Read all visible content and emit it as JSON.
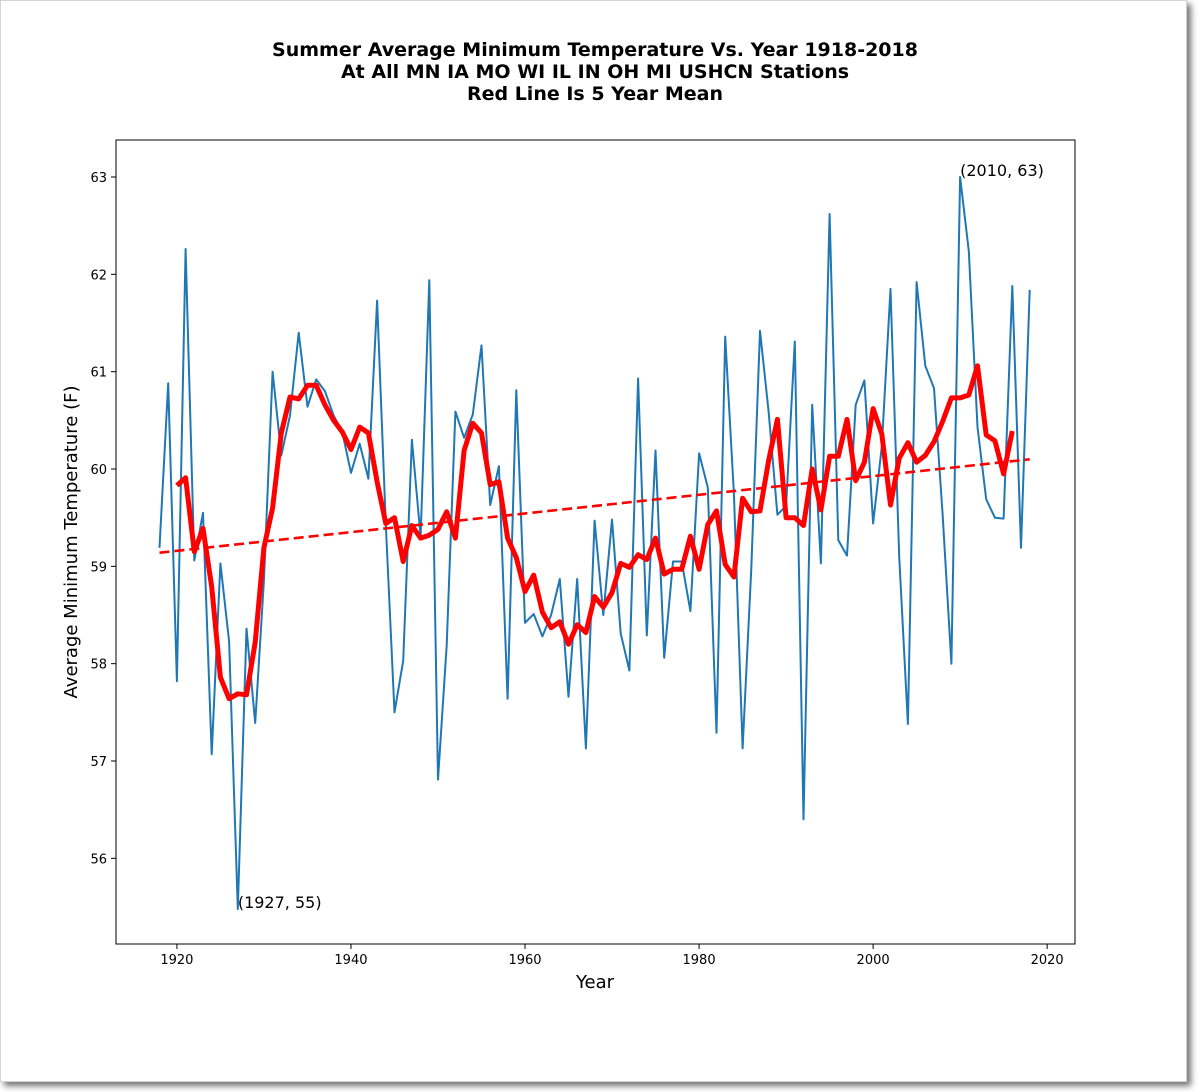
{
  "chart_data": {
    "type": "line",
    "title_lines": [
      "Summer Average Minimum Temperature Vs. Year 1918-2018",
      "At All MN IA MO WI IL IN OH MI USHCN Stations",
      "Red Line Is 5 Year Mean"
    ],
    "xlabel": "Year",
    "ylabel": "Average Minimum Temperature (F)",
    "xlim": [
      1913,
      2023.2
    ],
    "ylim": [
      55.12,
      63.38
    ],
    "xticks": [
      1920,
      1940,
      1960,
      1980,
      2000,
      2020
    ],
    "yticks": [
      56,
      57,
      58,
      59,
      60,
      61,
      62,
      63
    ],
    "grid": false,
    "colors": {
      "annual": "#1f77b4",
      "mean": "#ff0000",
      "trend": "#ff0000"
    },
    "series": [
      {
        "style": "line",
        "x": [
          1918,
          1919,
          1920,
          1921,
          1922,
          1923,
          1924,
          1925,
          1926,
          1927,
          1928,
          1929,
          1930,
          1931,
          1932,
          1933,
          1934,
          1935,
          1936,
          1937,
          1938,
          1939,
          1940,
          1941,
          1942,
          1943,
          1944,
          1945,
          1946,
          1947,
          1948,
          1949,
          1950,
          1951,
          1952,
          1953,
          1954,
          1955,
          1956,
          1957,
          1958,
          1959,
          1960,
          1961,
          1962,
          1963,
          1964,
          1965,
          1966,
          1967,
          1968,
          1969,
          1970,
          1971,
          1972,
          1973,
          1974,
          1975,
          1976,
          1977,
          1978,
          1979,
          1980,
          1981,
          1982,
          1983,
          1984,
          1985,
          1986,
          1987,
          1988,
          1989,
          1990,
          1991,
          1992,
          1993,
          1994,
          1995,
          1996,
          1997,
          1998,
          1999,
          2000,
          2001,
          2002,
          2003,
          2004,
          2005,
          2006,
          2007,
          2008,
          2009,
          2010,
          2011,
          2012,
          2013,
          2014,
          2015,
          2016,
          2017,
          2018
        ],
        "values": [
          59.19,
          60.88,
          57.82,
          62.26,
          59.06,
          59.55,
          57.07,
          59.03,
          58.23,
          55.48,
          58.36,
          57.39,
          58.85,
          61.0,
          60.14,
          60.55,
          61.4,
          60.64,
          60.92,
          60.8,
          60.55,
          60.38,
          59.96,
          60.26,
          59.9,
          61.73,
          59.43,
          57.5,
          58.03,
          60.3,
          59.3,
          61.94,
          56.81,
          58.19,
          60.59,
          60.32,
          60.56,
          61.27,
          59.63,
          60.03,
          57.64,
          60.81,
          58.42,
          58.51,
          58.28,
          58.5,
          58.87,
          57.66,
          58.87,
          57.13,
          59.47,
          58.5,
          59.48,
          58.31,
          57.93,
          60.93,
          58.29,
          60.19,
          58.06,
          59.05,
          59.05,
          58.54,
          60.16,
          59.81,
          57.29,
          61.36,
          59.75,
          57.13,
          58.98,
          61.42,
          60.58,
          59.53,
          59.62,
          61.31,
          56.4,
          60.66,
          59.03,
          62.62,
          59.27,
          59.11,
          60.66,
          60.91,
          59.44,
          60.23,
          61.85,
          59.1,
          57.38,
          61.92,
          61.06,
          60.83,
          59.52,
          58.0,
          63.0,
          62.24,
          60.43,
          59.69,
          59.5,
          59.49,
          61.88,
          59.19,
          61.84
        ]
      },
      {
        "style": "mean",
        "x": [
          1918,
          1919,
          1920,
          1921,
          1922,
          1923,
          1924,
          1925,
          1926,
          1927,
          1928,
          1929,
          1930,
          1931,
          1932,
          1933,
          1934,
          1935,
          1936,
          1937,
          1938,
          1939,
          1940,
          1941,
          1942,
          1943,
          1944,
          1945,
          1946,
          1947,
          1948,
          1949,
          1950,
          1951,
          1952,
          1953,
          1954,
          1955,
          1956,
          1957,
          1958,
          1959,
          1960,
          1961,
          1962,
          1963,
          1964,
          1965,
          1966,
          1967,
          1968,
          1969,
          1970,
          1971,
          1972,
          1973,
          1974,
          1975,
          1976,
          1977,
          1978,
          1979,
          1980,
          1981,
          1982,
          1983,
          1984,
          1985,
          1986,
          1987,
          1988,
          1989,
          1990,
          1991,
          1992,
          1993,
          1994,
          1995,
          1996,
          1997,
          1998,
          1999,
          2000,
          2001,
          2002,
          2003,
          2004,
          2005,
          2006,
          2007,
          2008,
          2009,
          2010,
          2011,
          2012,
          2013,
          2014,
          2015,
          2016
        ],
        "values": [
          null,
          null,
          59.83,
          59.91,
          59.15,
          59.39,
          58.79,
          57.86,
          57.64,
          57.69,
          57.68,
          58.22,
          59.19,
          59.6,
          60.37,
          60.74,
          60.72,
          60.86,
          60.86,
          60.66,
          60.5,
          60.38,
          60.2,
          60.43,
          60.37,
          59.87,
          59.44,
          59.5,
          59.05,
          59.42,
          59.29,
          59.32,
          59.38,
          59.56,
          59.29,
          60.19,
          60.47,
          60.37,
          59.84,
          59.87,
          59.29,
          59.09,
          58.74,
          58.91,
          58.53,
          58.37,
          58.43,
          58.2,
          58.4,
          58.32,
          58.69,
          58.58,
          58.73,
          59.03,
          58.99,
          59.12,
          59.07,
          59.29,
          58.92,
          58.97,
          58.97,
          59.31,
          58.97,
          59.43,
          59.57,
          59.02,
          58.89,
          59.7,
          59.56,
          59.57,
          60.09,
          60.51,
          59.5,
          59.5,
          59.42,
          60.0,
          59.58,
          60.13,
          60.13,
          60.51,
          59.88,
          60.07,
          60.62,
          60.36,
          59.63,
          60.11,
          60.27,
          60.07,
          60.14,
          60.28,
          60.49,
          60.73,
          60.73,
          60.76,
          61.06,
          60.35,
          60.29,
          59.95,
          60.39
        ]
      },
      {
        "style": "trend",
        "x": [
          1918,
          2018
        ],
        "values": [
          59.14,
          60.1
        ]
      }
    ],
    "annotations": [
      {
        "text": "(1927, 55)",
        "x": 1927,
        "y": 55.48
      },
      {
        "text": "(2010, 63)",
        "x": 2010,
        "y": 63.0
      }
    ]
  }
}
